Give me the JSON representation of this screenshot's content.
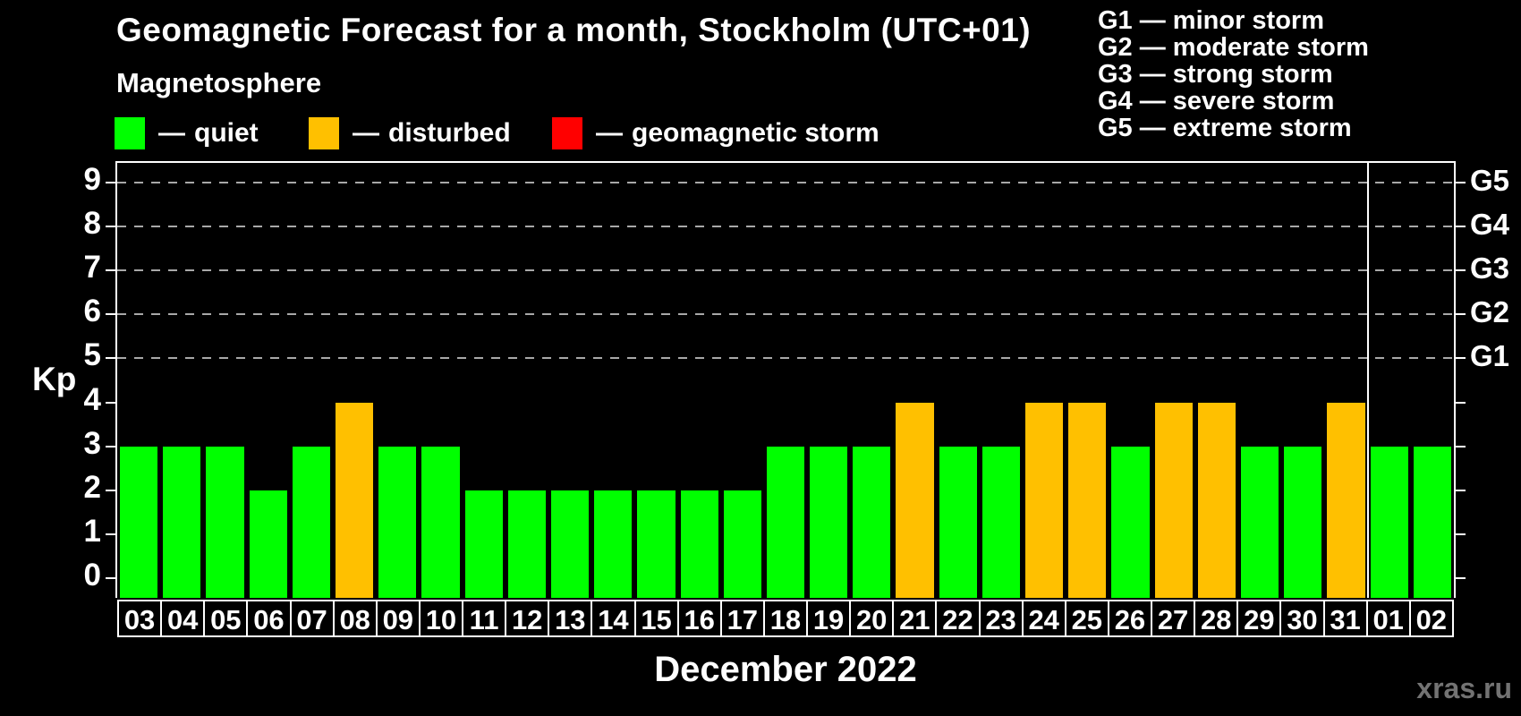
{
  "watermark": "xras.ru",
  "legend": {
    "heading": "Magnetosphere",
    "dash": "—",
    "items": [
      {
        "label": "quiet",
        "color": "#00ff00",
        "x": 128
      },
      {
        "label": "disturbed",
        "color": "#ffc000",
        "x": 345
      },
      {
        "label": "geomagnetic storm",
        "color": "#ff0000",
        "x": 617
      }
    ]
  },
  "storm_scale": [
    "G1 — minor storm",
    "G2 — moderate storm",
    "G3 — strong storm",
    "G4 — severe storm",
    "G5 — extreme storm"
  ],
  "chart_data": {
    "type": "bar",
    "title": "Geomagnetic Forecast for a month, Stockholm (UTC+01)",
    "xlabel": "December 2022",
    "ylabel": "Kp",
    "ylim": [
      -0.45,
      9.45
    ],
    "yticks": [
      0,
      1,
      2,
      3,
      4,
      5,
      6,
      7,
      8,
      9
    ],
    "gridlines": [
      5,
      6,
      7,
      8,
      9
    ],
    "grid_on": true,
    "legend_position": "top-left",
    "g_labels": [
      {
        "kp": 5,
        "text": "G1"
      },
      {
        "kp": 6,
        "text": "G2"
      },
      {
        "kp": 7,
        "text": "G3"
      },
      {
        "kp": 8,
        "text": "G4"
      },
      {
        "kp": 9,
        "text": "G5"
      }
    ],
    "categories": [
      "03",
      "04",
      "05",
      "06",
      "07",
      "08",
      "09",
      "10",
      "11",
      "12",
      "13",
      "14",
      "15",
      "16",
      "17",
      "18",
      "19",
      "20",
      "21",
      "22",
      "23",
      "24",
      "25",
      "26",
      "27",
      "28",
      "29",
      "30",
      "31",
      "01",
      "02"
    ],
    "values": [
      3,
      3,
      3,
      2,
      3,
      4,
      3,
      3,
      2,
      2,
      2,
      2,
      2,
      2,
      2,
      3,
      3,
      3,
      4,
      3,
      3,
      4,
      4,
      3,
      4,
      4,
      3,
      3,
      4,
      3,
      3
    ],
    "statuses": [
      "quiet",
      "quiet",
      "quiet",
      "quiet",
      "quiet",
      "disturbed",
      "quiet",
      "quiet",
      "quiet",
      "quiet",
      "quiet",
      "quiet",
      "quiet",
      "quiet",
      "quiet",
      "quiet",
      "quiet",
      "quiet",
      "disturbed",
      "quiet",
      "quiet",
      "disturbed",
      "disturbed",
      "quiet",
      "disturbed",
      "disturbed",
      "quiet",
      "quiet",
      "disturbed",
      "quiet",
      "quiet"
    ],
    "bar_colors": {
      "quiet": "#00ff00",
      "disturbed": "#ffc000",
      "storm": "#ff0000"
    },
    "month_divider_after_index": 28
  }
}
